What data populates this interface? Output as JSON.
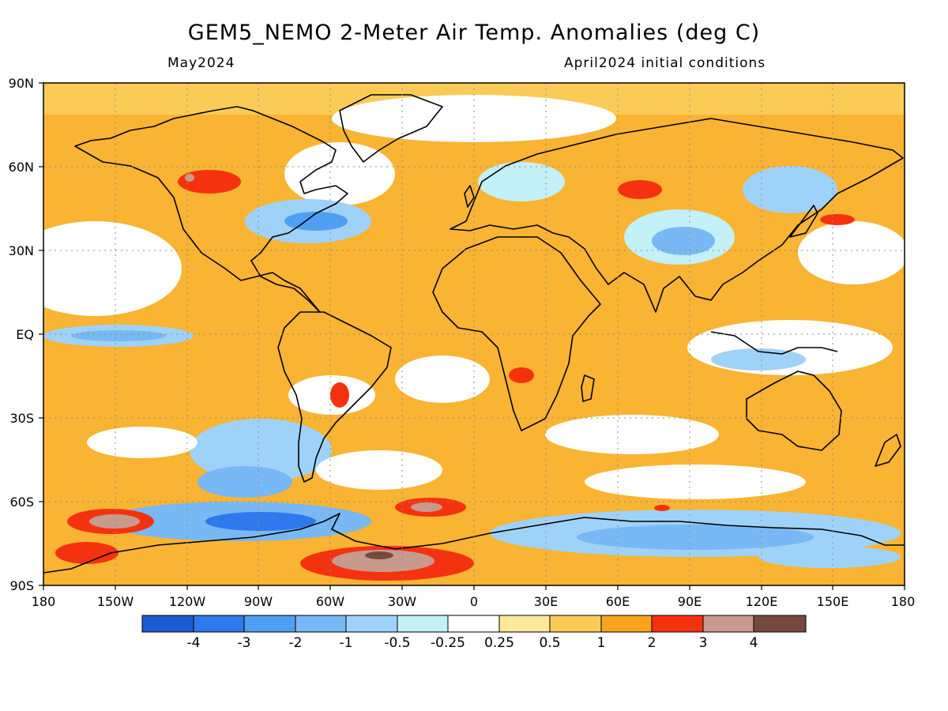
{
  "header": {
    "title": "GEM5_NEMO 2-Meter Air Temp. Anomalies (deg C)",
    "valid_month": "May2024",
    "init_conditions": "April2024 initial conditions"
  },
  "map": {
    "projection": "equirectangular",
    "lon_range": [
      -180,
      180
    ],
    "lat_range": [
      -90,
      90
    ],
    "gridlines": "dotted",
    "lat_labels": [
      "90N",
      "60N",
      "30N",
      "EQ",
      "30S",
      "60S",
      "90S"
    ],
    "lon_labels": [
      "180",
      "150W",
      "120W",
      "90W",
      "60W",
      "30W",
      "0",
      "30E",
      "60E",
      "90E",
      "120E",
      "150E",
      "180"
    ],
    "ocean_background_color": "#f8b432",
    "coastline_color": "#000000"
  },
  "colorbar": {
    "colors": [
      "#1a5fd2",
      "#2e79eb",
      "#4f9ff3",
      "#78b8f4",
      "#9fd2f8",
      "#c4f0f8",
      "#ffffff",
      "#fee89a",
      "#fbcb58",
      "#f8a41c",
      "#f5320f",
      "#c89a8e",
      "#754b3d"
    ],
    "labels": [
      "-4",
      "-3",
      "-2",
      "-1",
      "-0.5",
      "-0.25",
      "0.25",
      "0.5",
      "1",
      "2",
      "3",
      "4"
    ]
  }
}
